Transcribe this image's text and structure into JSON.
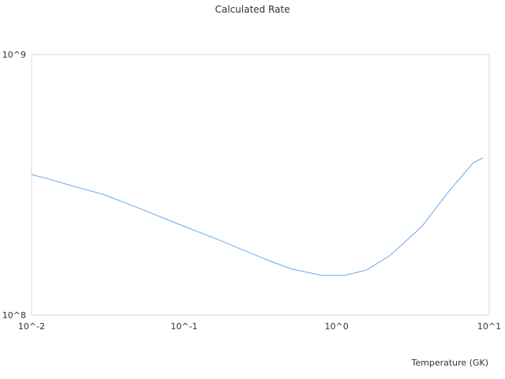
{
  "chart_data": {
    "type": "line",
    "title": "Calculated Rate",
    "xlabel": "Temperature (GK)",
    "ylabel": "",
    "xscale": "log",
    "yscale": "log",
    "xlim": [
      0.01,
      10
    ],
    "ylim": [
      100000000,
      1000000000
    ],
    "x_tick_labels": [
      "10^-2",
      "10^-1",
      "10^0",
      "10^1"
    ],
    "y_tick_labels": [
      "10^8",
      "10^9"
    ],
    "grid": false,
    "series": [
      {
        "name": "Calculated Rate",
        "color": "#6aa6ee",
        "x": [
          0.01,
          0.0127,
          0.0181,
          0.0292,
          0.0499,
          0.0963,
          0.174,
          0.357,
          0.51,
          0.8,
          1.13,
          1.58,
          2.25,
          3.6,
          5.5,
          7.9,
          9.1
        ],
        "y": [
          346000000.0,
          334000000.0,
          314000000.0,
          291000000.0,
          258000000.0,
          221000000.0,
          193000000.0,
          162000000.0,
          150000000.0,
          142000000.0,
          142000000.0,
          149000000.0,
          170000000.0,
          218000000.0,
          301000000.0,
          385000000.0,
          401000000.0
        ]
      }
    ]
  }
}
